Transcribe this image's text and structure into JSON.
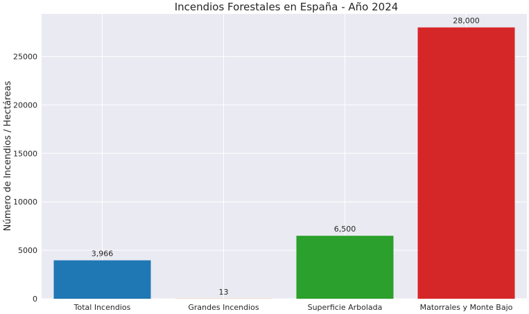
{
  "chart_data": {
    "type": "bar",
    "title": "Incendios Forestales en España - Año 2024",
    "xlabel": "",
    "ylabel": "Número de Incendios / Hectáreas",
    "categories": [
      "Total Incendios",
      "Grandes Incendios",
      "Superficie Arbolada",
      "Matorrales y Monte Bajo"
    ],
    "values": [
      3966,
      13,
      6500,
      28000
    ],
    "value_labels": [
      "3,966",
      "13",
      "6,500",
      "28,000"
    ],
    "colors": [
      "#1f77b4",
      "#ff7f0e",
      "#2ca02c",
      "#d62728"
    ],
    "ylim": [
      0,
      29400
    ],
    "yticks": [
      0,
      5000,
      10000,
      15000,
      20000,
      25000
    ],
    "ytick_labels": [
      "0",
      "5000",
      "10000",
      "15000",
      "20000",
      "25000"
    ],
    "grid": true,
    "background": "#eaeaf2",
    "grid_color": "#ffffff"
  }
}
